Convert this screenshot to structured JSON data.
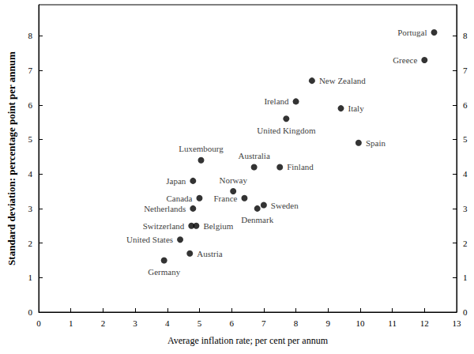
{
  "chart_data": {
    "type": "scatter",
    "x_label": "Average inflation rate; per cent per annum",
    "y_label": "Standard deviation: percentage point per annum",
    "labels": [
      "Portugal",
      "Greece",
      "New Zealand",
      "Ireland",
      "Italy",
      "United Kingdom",
      "Spain",
      "Luxembourg",
      "Australia",
      "Finland",
      "Japan",
      "Norway",
      "Canada",
      "France",
      "Sweden",
      "Denmark",
      "Netherlands",
      "Belgium",
      "United States",
      "Switzerland",
      "Austria",
      "Germany"
    ],
    "x": [
      12.3,
      12.0,
      8.5,
      8.0,
      9.4,
      7.7,
      9.95,
      5.05,
      6.7,
      7.5,
      4.8,
      6.05,
      5.0,
      6.4,
      7.0,
      6.8,
      4.8,
      4.9,
      4.4,
      4.75,
      4.7,
      3.9
    ],
    "y": [
      8.1,
      7.3,
      6.7,
      6.1,
      5.9,
      5.6,
      4.9,
      4.4,
      4.2,
      4.2,
      3.8,
      3.5,
      3.3,
      3.3,
      3.1,
      3.0,
      3.0,
      2.5,
      2.1,
      2.5,
      1.7,
      1.5
    ],
    "xlim": [
      0,
      13
    ],
    "xticks": [
      0,
      1,
      2,
      3,
      4,
      5,
      6,
      7,
      8,
      9,
      10,
      11,
      12,
      13
    ],
    "ylim": [
      0,
      8.9
    ],
    "yticks": [
      0,
      1,
      2,
      3,
      4,
      5,
      6,
      7,
      8
    ],
    "color": "#000000",
    "marker": "circle",
    "grid": false
  }
}
